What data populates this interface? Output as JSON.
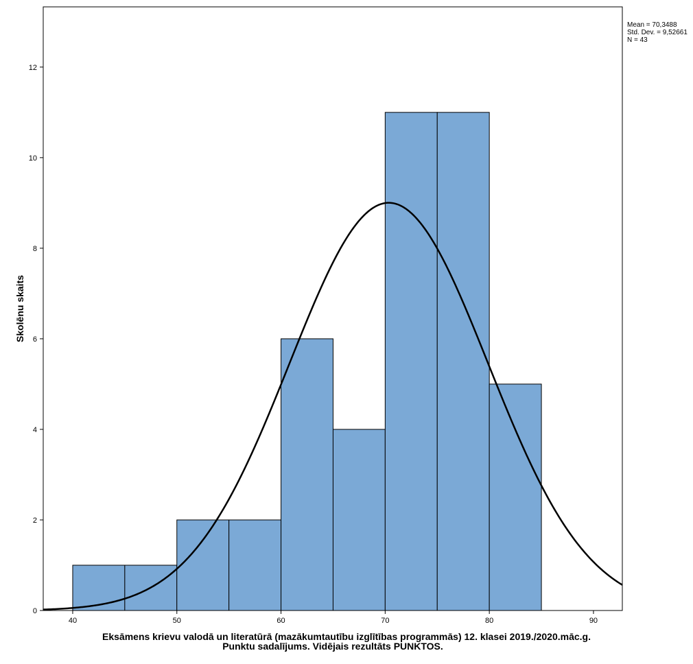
{
  "chart_data": {
    "type": "bar",
    "subtype": "histogram",
    "bins": [
      [
        40,
        45
      ],
      [
        45,
        50
      ],
      [
        50,
        55
      ],
      [
        55,
        60
      ],
      [
        60,
        65
      ],
      [
        65,
        70
      ],
      [
        70,
        75
      ],
      [
        75,
        80
      ],
      [
        80,
        85
      ]
    ],
    "values": [
      1,
      1,
      2,
      2,
      6,
      4,
      11,
      11,
      5
    ],
    "xlabel_line1": "Eksāmens krievu valodā un literatūrā (mazākumtautību izglītības programmās) 12. klasei 2019./2020.māc.g.",
    "xlabel_line2": "Punktu sadalījums. Vidējais rezultāts PUNKTOS.",
    "ylabel": "Skolēnu skaits",
    "xlim": [
      37.17,
      92.77
    ],
    "ylim": [
      0,
      13.33
    ],
    "xticks": [
      40,
      50,
      60,
      70,
      80,
      90
    ],
    "yticks": [
      0,
      2,
      4,
      6,
      8,
      10,
      12
    ],
    "bar_color": "#7BA9D6",
    "normal_curve": {
      "mean": 70.3488,
      "sd": 9.52661,
      "n": 43,
      "bin_width": 5
    },
    "stats": {
      "mean_label": "Mean = 70,3488",
      "sd_label": "Std. Dev. = 9,52661",
      "n_label": "N = 43"
    },
    "grid": false
  }
}
